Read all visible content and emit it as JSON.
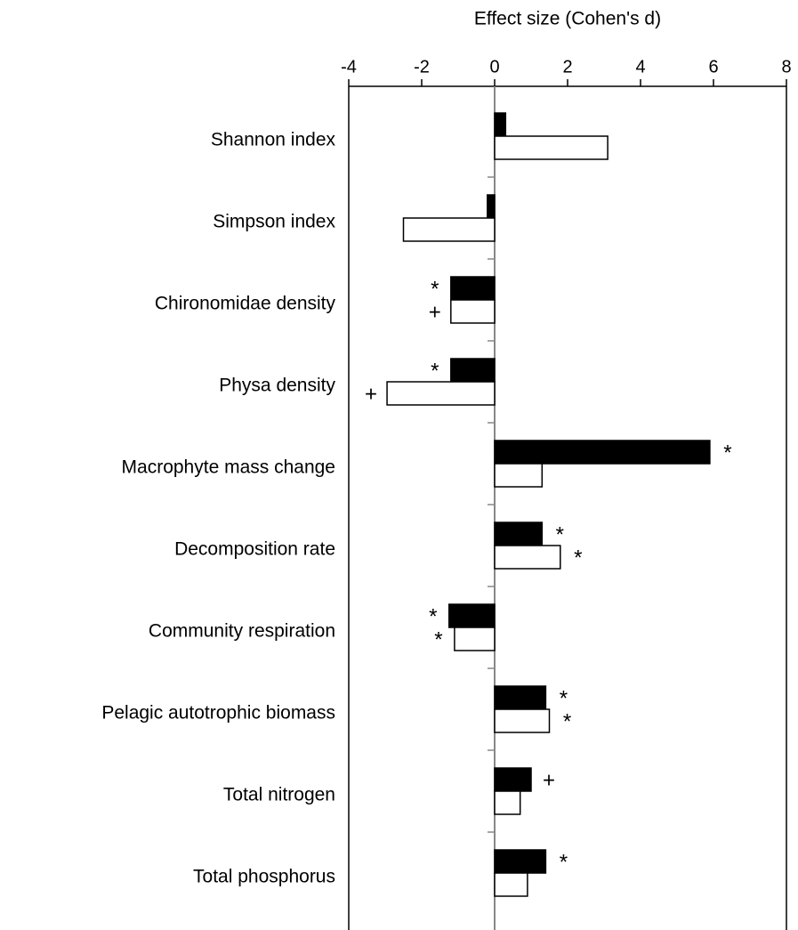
{
  "chart_data": {
    "type": "barh",
    "x_label": "Effect size (Cohen's d)",
    "categories": [
      "Shannon index",
      "Simpson index",
      "Chironomidae density",
      "Physa density",
      "Macrophyte mass change",
      "Decomposition rate",
      "Community respiration",
      "Pelagic autotrophic biomass",
      "Total nitrogen",
      "Total phosphorus"
    ],
    "series": [
      {
        "color": "#000000",
        "values": [
          0.3,
          -0.2,
          -1.2,
          -1.2,
          5.9,
          1.3,
          -1.25,
          1.4,
          1.0,
          1.4
        ],
        "annotations": [
          null,
          null,
          "*",
          "*",
          "*",
          "*",
          "*",
          "*",
          "+",
          "*"
        ]
      },
      {
        "color": "#ffffff",
        "values": [
          3.1,
          -2.5,
          -1.2,
          -2.95,
          1.3,
          1.8,
          -1.1,
          1.5,
          0.7,
          0.9
        ],
        "annotations": [
          null,
          null,
          "+",
          "+",
          null,
          "*",
          "*",
          "*",
          null,
          null
        ]
      }
    ],
    "xlim": [
      -4,
      8
    ],
    "xticks": [
      -4,
      -2,
      0,
      2,
      4,
      6,
      8
    ]
  }
}
